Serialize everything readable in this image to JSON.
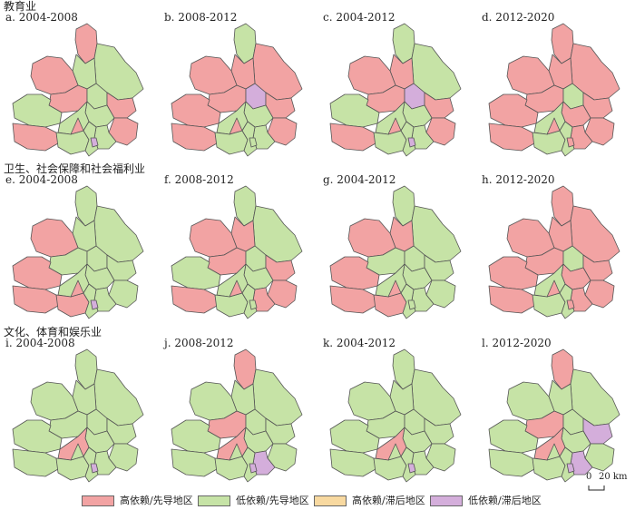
{
  "colors": {
    "high_lead": "#f2a3a3",
    "low_lead": "#c6e3a6",
    "high_lag": "#f8d9a0",
    "low_lag": "#d4aedb",
    "border": "#555555"
  },
  "sections": [
    {
      "title": "教育业"
    },
    {
      "title": "卫生、社会保障和社会福利业"
    },
    {
      "title": "文化、体育和娱乐业"
    }
  ],
  "panels": [
    {
      "label": "a. 2004-2008",
      "regions": [
        "high_lead",
        "low_lead",
        "low_lead",
        "high_lead",
        "high_lead",
        "low_lead",
        "high_lead",
        "low_lead",
        "low_lead",
        "high_lead",
        "low_lead",
        "high_lead",
        "low_lead",
        "low_lead",
        "low_lead",
        "high_lead",
        "low_lag"
      ]
    },
    {
      "label": "b. 2008-2012",
      "regions": [
        "low_lead",
        "high_lead",
        "high_lead",
        "high_lead",
        "high_lead",
        "low_lag",
        "high_lead",
        "high_lead",
        "low_lead",
        "high_lead",
        "low_lead",
        "high_lead",
        "low_lead",
        "low_lead",
        "low_lead",
        "high_lead",
        "low_lead"
      ]
    },
    {
      "label": "c. 2004-2012",
      "regions": [
        "low_lead",
        "low_lead",
        "high_lead",
        "high_lead",
        "high_lead",
        "low_lag",
        "high_lead",
        "low_lead",
        "low_lead",
        "high_lead",
        "low_lead",
        "high_lead",
        "low_lead",
        "low_lead",
        "low_lead",
        "high_lead",
        "low_lag"
      ]
    },
    {
      "label": "d. 2012-2020",
      "regions": [
        "high_lead",
        "high_lead",
        "high_lead",
        "high_lead",
        "high_lead",
        "low_lead",
        "high_lead",
        "high_lead",
        "high_lead",
        "high_lead",
        "low_lead",
        "high_lead",
        "high_lead",
        "low_lead",
        "low_lead",
        "high_lead",
        "high_lead"
      ]
    },
    {
      "label": "e. 2004-2008",
      "regions": [
        "low_lead",
        "low_lead",
        "low_lead",
        "high_lead",
        "low_lead",
        "low_lead",
        "low_lead",
        "high_lead",
        "low_lead",
        "high_lead",
        "low_lead",
        "low_lead",
        "low_lead",
        "high_lead",
        "low_lead",
        "high_lead",
        "low_lag"
      ]
    },
    {
      "label": "f. 2008-2012",
      "regions": [
        "low_lead",
        "low_lead",
        "high_lead",
        "high_lead",
        "high_lead",
        "low_lead",
        "high_lead",
        "low_lead",
        "low_lead",
        "high_lead",
        "low_lead",
        "high_lead",
        "high_lead",
        "low_lead",
        "low_lead",
        "high_lead",
        "low_lead"
      ]
    },
    {
      "label": "g. 2004-2012",
      "regions": [
        "low_lead",
        "low_lead",
        "high_lead",
        "high_lead",
        "low_lead",
        "low_lead",
        "low_lead",
        "high_lead",
        "low_lead",
        "high_lead",
        "low_lead",
        "low_lead",
        "low_lead",
        "high_lead",
        "low_lead",
        "high_lead",
        "low_lead"
      ]
    },
    {
      "label": "h. 2012-2020",
      "regions": [
        "high_lead",
        "high_lead",
        "high_lead",
        "high_lead",
        "high_lead",
        "low_lead",
        "high_lead",
        "high_lead",
        "high_lead",
        "high_lead",
        "low_lead",
        "high_lead",
        "high_lead",
        "low_lead",
        "low_lead",
        "high_lead",
        "high_lead"
      ]
    },
    {
      "label": "i. 2004-2008",
      "regions": [
        "low_lead",
        "low_lead",
        "low_lead",
        "low_lead",
        "low_lead",
        "low_lead",
        "low_lead",
        "low_lead",
        "low_lead",
        "low_lead",
        "high_lead",
        "low_lead",
        "low_lead",
        "low_lead",
        "low_lead",
        "low_lead",
        "low_lag"
      ]
    },
    {
      "label": "j. 2008-2012",
      "regions": [
        "high_lead",
        "low_lead",
        "low_lead",
        "low_lead",
        "high_lead",
        "low_lead",
        "low_lead",
        "low_lead",
        "low_lead",
        "low_lead",
        "high_lead",
        "low_lead",
        "low_lag",
        "low_lead",
        "low_lead",
        "low_lead",
        "low_lag"
      ]
    },
    {
      "label": "k. 2004-2012",
      "regions": [
        "low_lead",
        "low_lead",
        "low_lead",
        "low_lead",
        "low_lead",
        "low_lead",
        "low_lead",
        "low_lead",
        "low_lead",
        "low_lead",
        "high_lead",
        "low_lead",
        "low_lead",
        "low_lead",
        "low_lead",
        "low_lead",
        "low_lag"
      ]
    },
    {
      "label": "l. 2012-2020",
      "regions": [
        "high_lead",
        "low_lead",
        "low_lead",
        "low_lead",
        "high_lead",
        "low_lead",
        "low_lag",
        "low_lead",
        "low_lead",
        "low_lead",
        "high_lead",
        "low_lead",
        "low_lag",
        "low_lead",
        "low_lead",
        "low_lead",
        "low_lag"
      ]
    }
  ],
  "legend": [
    {
      "key": "high_lead",
      "label": "高依赖/先导地区"
    },
    {
      "key": "low_lead",
      "label": "低依赖/先导地区"
    },
    {
      "key": "high_lag",
      "label": "高依赖/滞后地区"
    },
    {
      "key": "low_lag",
      "label": "低依赖/滞后地区"
    }
  ],
  "scale_bar": {
    "zero": "0",
    "distance": "20 km"
  }
}
